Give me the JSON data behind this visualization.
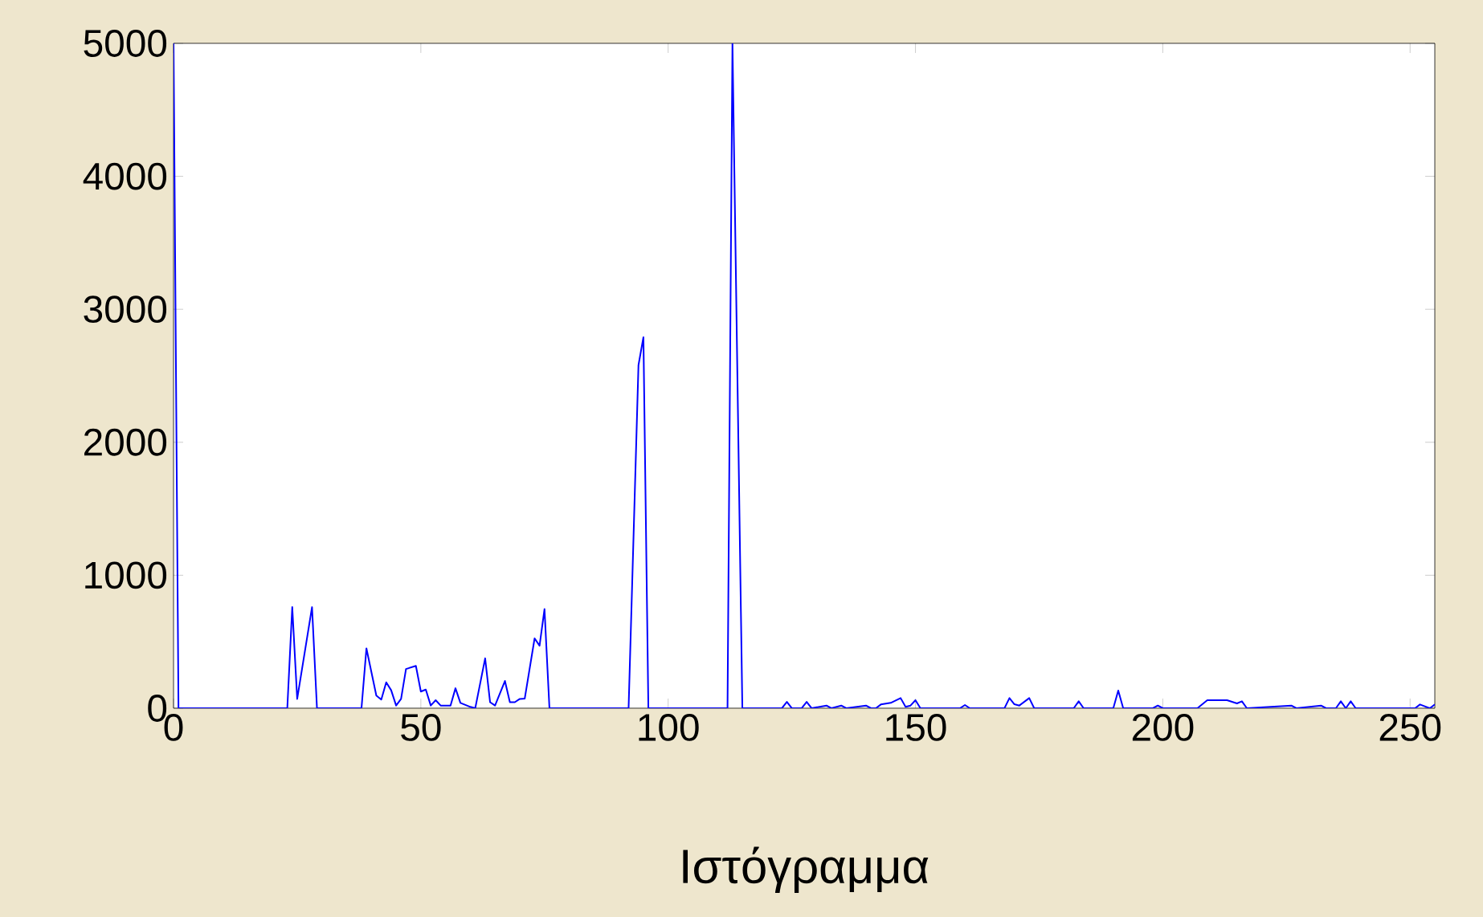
{
  "chart_data": {
    "type": "line",
    "xlabel": "Ιστόγραμμα",
    "x": [
      0,
      1,
      23,
      24,
      25,
      28,
      29,
      38,
      39,
      41,
      42,
      43,
      44,
      45,
      46,
      47,
      49,
      50,
      51,
      52,
      53,
      54,
      56,
      57,
      58,
      60,
      61,
      63,
      64,
      65,
      67,
      68,
      69,
      70,
      71,
      73,
      74,
      75,
      76,
      92,
      94,
      95,
      96,
      112,
      113,
      115,
      123,
      124,
      125,
      127,
      128,
      129,
      132,
      133,
      135,
      136,
      140,
      141,
      142,
      143,
      145,
      147,
      148,
      149,
      150,
      151,
      159,
      160,
      161,
      168,
      169,
      170,
      171,
      173,
      174,
      182,
      183,
      184,
      190,
      191,
      192,
      198,
      199,
      200,
      207,
      209,
      213,
      215,
      216,
      217,
      226,
      227,
      232,
      233,
      235,
      236,
      237,
      238,
      239,
      251,
      252,
      254,
      255
    ],
    "series": [
      {
        "color": "#0000ff",
        "values": [
          5000,
          0,
          0,
          760,
          70,
          760,
          0,
          0,
          450,
          95,
          65,
          195,
          135,
          20,
          70,
          295,
          318,
          125,
          140,
          20,
          60,
          20,
          20,
          150,
          40,
          10,
          0,
          375,
          45,
          20,
          205,
          45,
          45,
          70,
          72,
          525,
          470,
          745,
          0,
          0,
          2580,
          2790,
          0,
          0,
          5000,
          0,
          0,
          48,
          0,
          0,
          48,
          0,
          20,
          0,
          20,
          0,
          20,
          0,
          0,
          28,
          40,
          76,
          10,
          20,
          60,
          0,
          0,
          24,
          0,
          0,
          76,
          30,
          20,
          76,
          0,
          0,
          52,
          0,
          0,
          133,
          0,
          0,
          20,
          0,
          0,
          60,
          60,
          36,
          52,
          0,
          20,
          0,
          20,
          0,
          0,
          52,
          0,
          52,
          0,
          0,
          28,
          0,
          28
        ]
      }
    ],
    "xlim": [
      0,
      255
    ],
    "ylim": [
      0,
      5000
    ],
    "xticks": [
      0,
      50,
      100,
      150,
      200,
      250
    ],
    "yticks": [
      0,
      1000,
      2000,
      3000,
      4000,
      5000
    ],
    "grid": false,
    "marker": "none",
    "line_style": "solid"
  }
}
